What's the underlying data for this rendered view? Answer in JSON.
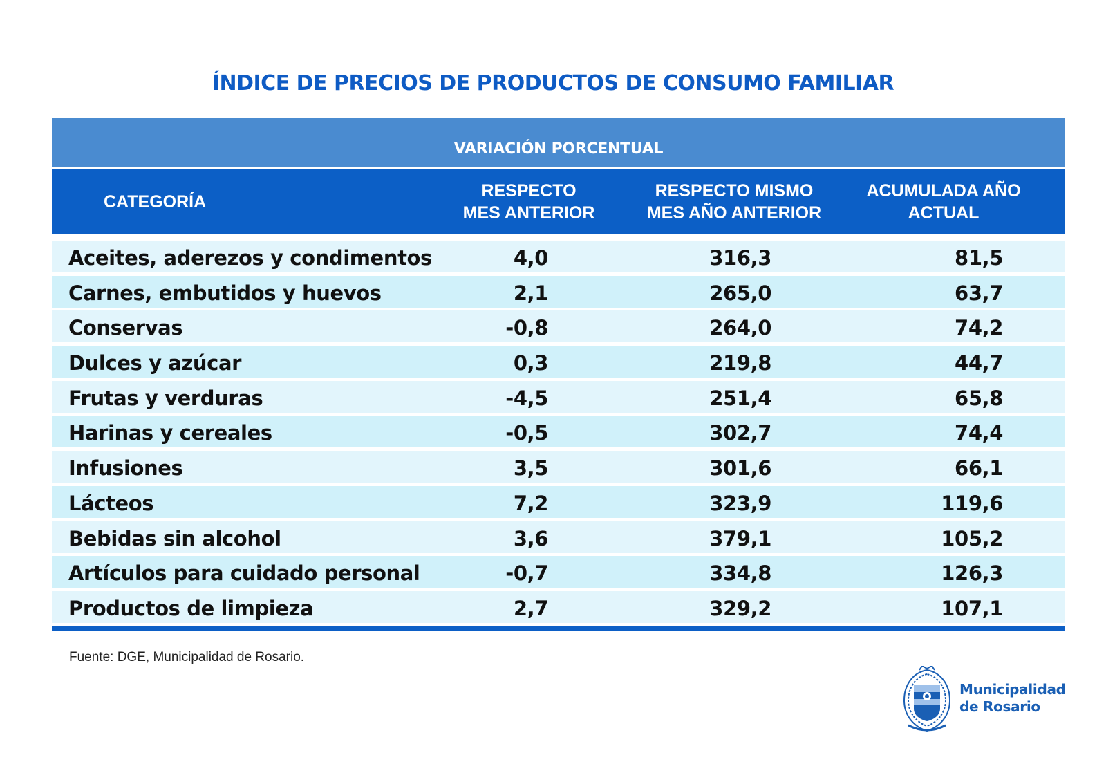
{
  "title": "ÍNDICE DE PRECIOS DE PRODUCTOS DE CONSUMO FAMILIAR",
  "banner": "VARIACIÓN PORCENTUAL",
  "headers": {
    "categoria": "CATEGORÍA",
    "col1": "RESPECTO\nMES ANTERIOR",
    "col2": "RESPECTO MISMO\nMES AÑO ANTERIOR",
    "col3": "ACUMULADA AÑO\nACTUAL"
  },
  "rows": [
    {
      "categoria": "Aceites, aderezos y condimentos",
      "mes_anterior": "4,0",
      "mismo_mes_anio_anterior": "316,3",
      "acumulada": "81,5"
    },
    {
      "categoria": "Carnes, embutidos y huevos",
      "mes_anterior": "2,1",
      "mismo_mes_anio_anterior": "265,0",
      "acumulada": "63,7"
    },
    {
      "categoria": "Conservas",
      "mes_anterior": "-0,8",
      "mismo_mes_anio_anterior": "264,0",
      "acumulada": "74,2"
    },
    {
      "categoria": "Dulces y azúcar",
      "mes_anterior": "0,3",
      "mismo_mes_anio_anterior": "219,8",
      "acumulada": "44,7"
    },
    {
      "categoria": "Frutas y verduras",
      "mes_anterior": "-4,5",
      "mismo_mes_anio_anterior": "251,4",
      "acumulada": "65,8"
    },
    {
      "categoria": "Harinas y cereales",
      "mes_anterior": "-0,5",
      "mismo_mes_anio_anterior": "302,7",
      "acumulada": "74,4"
    },
    {
      "categoria": "Infusiones",
      "mes_anterior": "3,5",
      "mismo_mes_anio_anterior": "301,6",
      "acumulada": "66,1"
    },
    {
      "categoria": "Lácteos",
      "mes_anterior": "7,2",
      "mismo_mes_anio_anterior": "323,9",
      "acumulada": "119,6"
    },
    {
      "categoria": "Bebidas sin alcohol",
      "mes_anterior": "3,6",
      "mismo_mes_anio_anterior": "379,1",
      "acumulada": "105,2"
    },
    {
      "categoria": "Artículos para cuidado personal",
      "mes_anterior": "-0,7",
      "mismo_mes_anio_anterior": "334,8",
      "acumulada": "126,3"
    },
    {
      "categoria": "Productos de limpieza",
      "mes_anterior": "2,7",
      "mismo_mes_anio_anterior": "329,2",
      "acumulada": "107,1"
    }
  ],
  "source": "Fuente: DGE, Municipalidad de Rosario.",
  "logo": {
    "line1": "Municipalidad",
    "line2": "de Rosario"
  },
  "colors": {
    "title": "#0e5bc4",
    "banner": "#4a8bd0",
    "header": "#0c5fc6",
    "row_odd": "#e2f5fc",
    "row_even": "#d0f1fa"
  }
}
